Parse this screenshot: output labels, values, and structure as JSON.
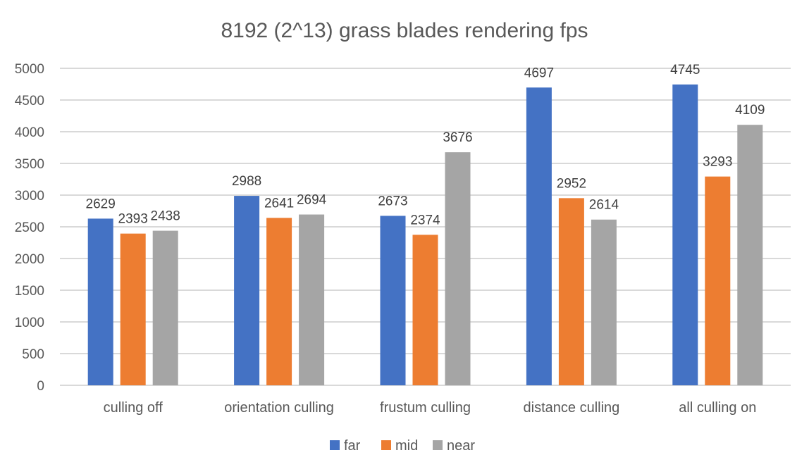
{
  "chart_data": {
    "type": "bar",
    "title": "8192 (2^13) grass blades rendering fps",
    "xlabel": "",
    "ylabel": "",
    "ylim": [
      0,
      5000
    ],
    "yticks": [
      0,
      500,
      1000,
      1500,
      2000,
      2500,
      3000,
      3500,
      4000,
      4500,
      5000
    ],
    "grid": true,
    "legend_position": "bottom",
    "categories": [
      "culling off",
      "orientation culling",
      "frustum culling",
      "distance culling",
      "all culling on"
    ],
    "series": [
      {
        "name": "far",
        "color": "#4472c4",
        "values": [
          2629,
          2988,
          2673,
          4697,
          4745
        ]
      },
      {
        "name": "mid",
        "color": "#ed7d31",
        "values": [
          2393,
          2641,
          2374,
          2952,
          3293
        ]
      },
      {
        "name": "near",
        "color": "#a5a5a5",
        "values": [
          2438,
          2694,
          3676,
          2614,
          4109
        ]
      }
    ]
  }
}
